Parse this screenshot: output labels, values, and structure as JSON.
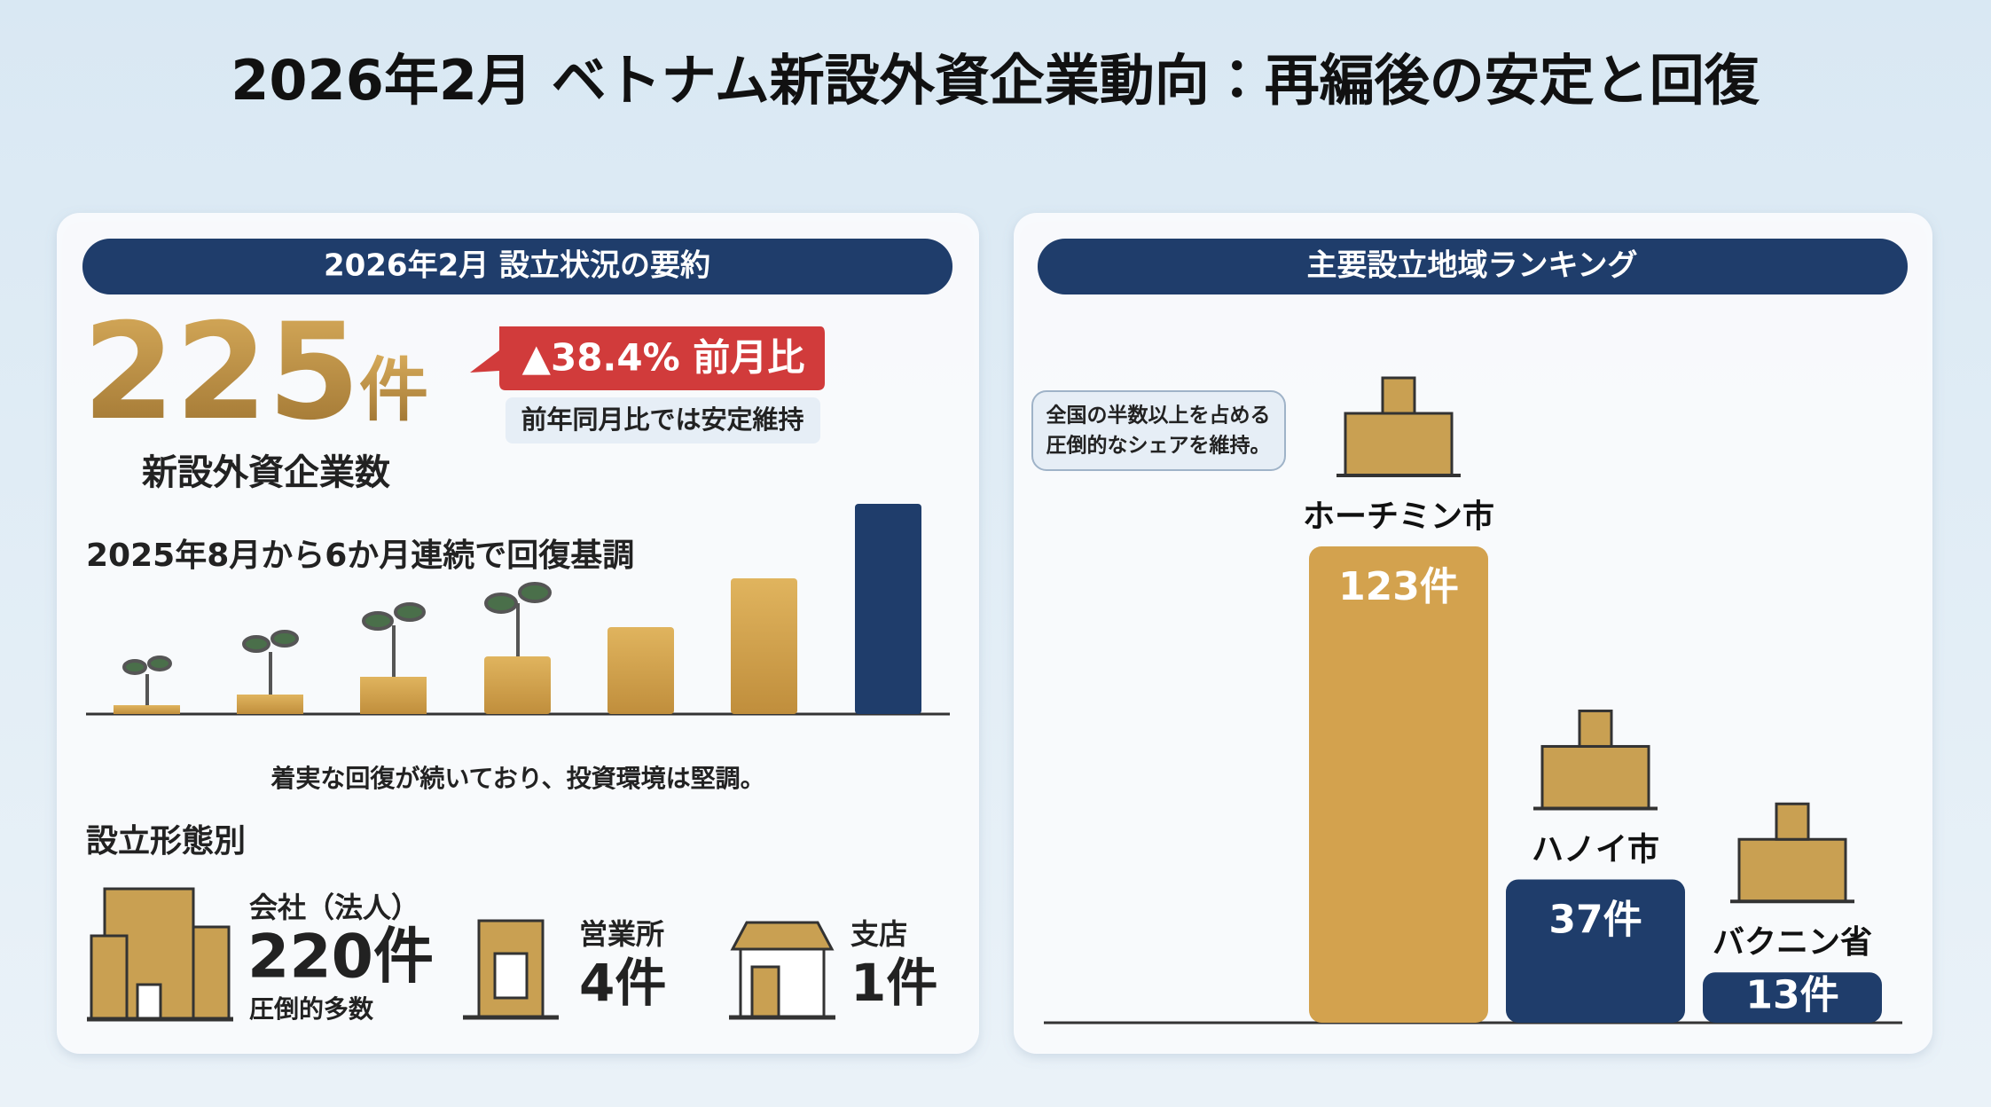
{
  "header": {
    "title": "2026年2月 ベトナム新設外資企業動向：再編後の安定と回復"
  },
  "summary": {
    "heading": "2026年2月 設立状況の要約",
    "total_number": "225",
    "total_unit": "件",
    "total_label": "新設外資企業数",
    "change": "▲38.4% 前月比",
    "change_note": "前年同月比では安定維持",
    "trend_title": "2025年8月から6か月連続で回復基調",
    "trend_note": "着実な回復が続いており、投資環境は堅調。",
    "types_heading": "設立形態別",
    "types": [
      {
        "name": "会社（法人）",
        "count": "220件",
        "note": "圧倒的多数"
      },
      {
        "name": "営業所",
        "count": "4件"
      },
      {
        "name": "支店",
        "count": "1件"
      }
    ]
  },
  "chart_data": {
    "type": "bar",
    "title": "主要設立地域ランキング",
    "annotations": [
      "全国の半数以上を占める",
      "圧倒的なシェアを維持。"
    ],
    "categories": [
      "ホーチミン市",
      "ハノイ市",
      "バクニン省"
    ],
    "values": [
      123,
      37,
      13
    ],
    "value_labels": [
      "123件",
      "37件",
      "13件"
    ],
    "colors": [
      "#d3a24e",
      "#1f3d6b",
      "#1f3d6b"
    ]
  }
}
